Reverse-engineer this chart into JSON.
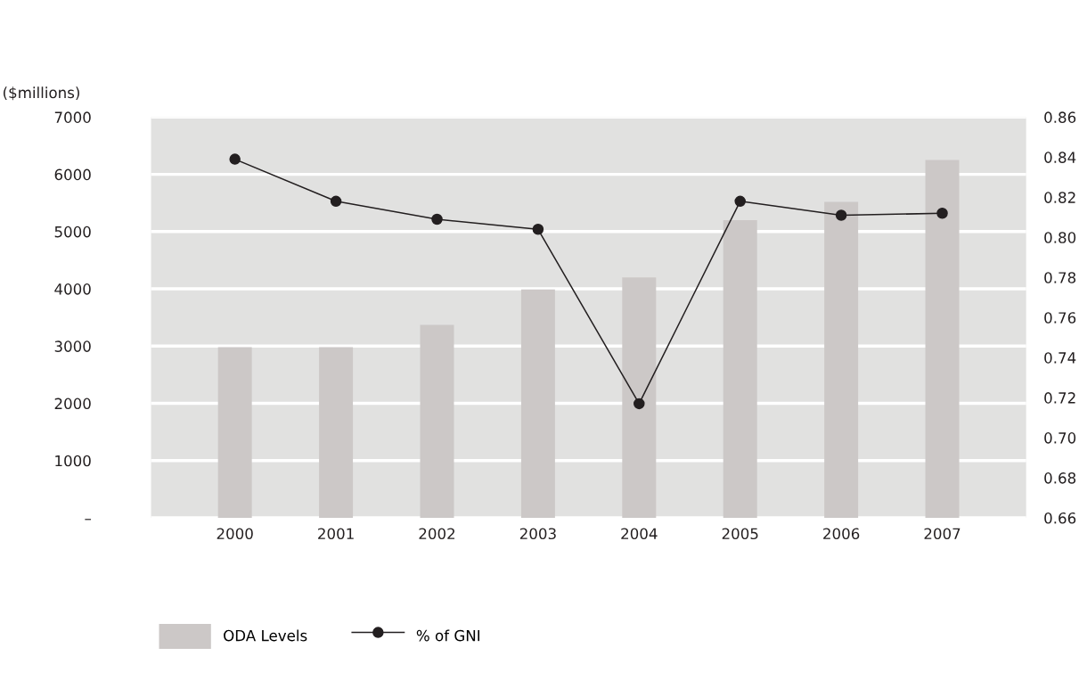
{
  "chart_data": {
    "type": "bar",
    "ylabel": "($millions)",
    "categories": [
      "2000",
      "2001",
      "2002",
      "2003",
      "2004",
      "2005",
      "2006",
      "2007"
    ],
    "series": [
      {
        "name": "ODA Levels",
        "type": "bar",
        "color": "#ccc8c7",
        "values": [
          2980,
          2980,
          3370,
          3990,
          4200,
          5200,
          5520,
          6250
        ]
      },
      {
        "name": "% of GNI",
        "type": "line",
        "axis": "y2",
        "color": "#231f20",
        "marker": "circle",
        "values": [
          0.839,
          0.818,
          0.809,
          0.804,
          0.717,
          0.818,
          0.811,
          0.812
        ]
      }
    ],
    "ylim": [
      0,
      7000
    ],
    "yticks": [
      {
        "value": 0,
        "label": "–"
      },
      1000,
      2000,
      3000,
      4000,
      5000,
      6000,
      7000
    ],
    "y2lim": [
      0.66,
      0.86
    ],
    "y2ticks": [
      {
        "value": 0.66,
        "label": "0.66"
      },
      {
        "value": 0.68,
        "label": "0.68"
      },
      {
        "value": 0.7,
        "label": "0.70"
      },
      {
        "value": 0.72,
        "label": "0.72"
      },
      {
        "value": 0.74,
        "label": "0.74"
      },
      {
        "value": 0.76,
        "label": "0.76"
      },
      {
        "value": 0.78,
        "label": "0.78"
      },
      {
        "value": 0.8,
        "label": "0.80"
      },
      {
        "value": 0.82,
        "label": "0.82"
      },
      {
        "value": 0.84,
        "label": "0.84"
      },
      {
        "value": 0.86,
        "label": "0.86"
      }
    ],
    "grid": "y",
    "legend": "bottom left"
  }
}
